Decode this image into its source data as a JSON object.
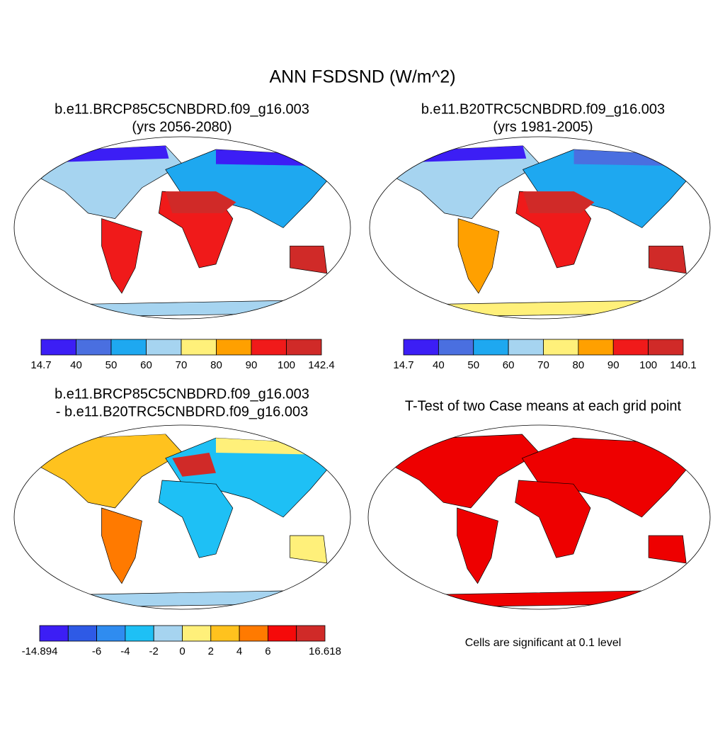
{
  "title": "ANN FSDSND (W/m^2)",
  "panels": [
    {
      "title_lines": [
        "b.e11.BRCP85C5CNBDRD.f09_g16.003",
        "(yrs 2056-2080)"
      ],
      "colorbar": {
        "colors": [
          "#3c1ef5",
          "#4a6fe0",
          "#1ea8f0",
          "#a6d4f0",
          "#fff07a",
          "#ffa000",
          "#f01a1a",
          "#d02a28"
        ],
        "labels": [
          14.7,
          40,
          50,
          60,
          70,
          80,
          90,
          100,
          142.4
        ]
      }
    },
    {
      "title_lines": [
        "b.e11.B20TRC5CNBDRD.f09_g16.003",
        "(yrs 1981-2005)"
      ],
      "colorbar": {
        "colors": [
          "#3c1ef5",
          "#4a6fe0",
          "#1ea8f0",
          "#a6d4f0",
          "#fff07a",
          "#ffa000",
          "#f01a1a",
          "#d02a28"
        ],
        "labels": [
          14.7,
          40,
          50,
          60,
          70,
          80,
          90,
          100,
          140.1
        ]
      }
    },
    {
      "title_lines": [
        "b.e11.BRCP85C5CNBDRD.f09_g16.003",
        "- b.e11.B20TRC5CNBDRD.f09_g16.003"
      ],
      "colorbar": {
        "colors": [
          "#3c1ef5",
          "#2e5ae6",
          "#2f8cf0",
          "#1ec0f5",
          "#a6d4f0",
          "#fff07a",
          "#ffc21e",
          "#ff7a00",
          "#f50a0a",
          "#d02a28"
        ],
        "labels": [
          -14.894,
          null,
          -6,
          -4,
          -2,
          0,
          2,
          4,
          6,
          null,
          16.618
        ]
      }
    },
    {
      "title_lines": [
        "T-Test of two Case means at each grid point"
      ],
      "note": "Cells are significant at 0.1 level",
      "color": "#ee0000"
    }
  ]
}
